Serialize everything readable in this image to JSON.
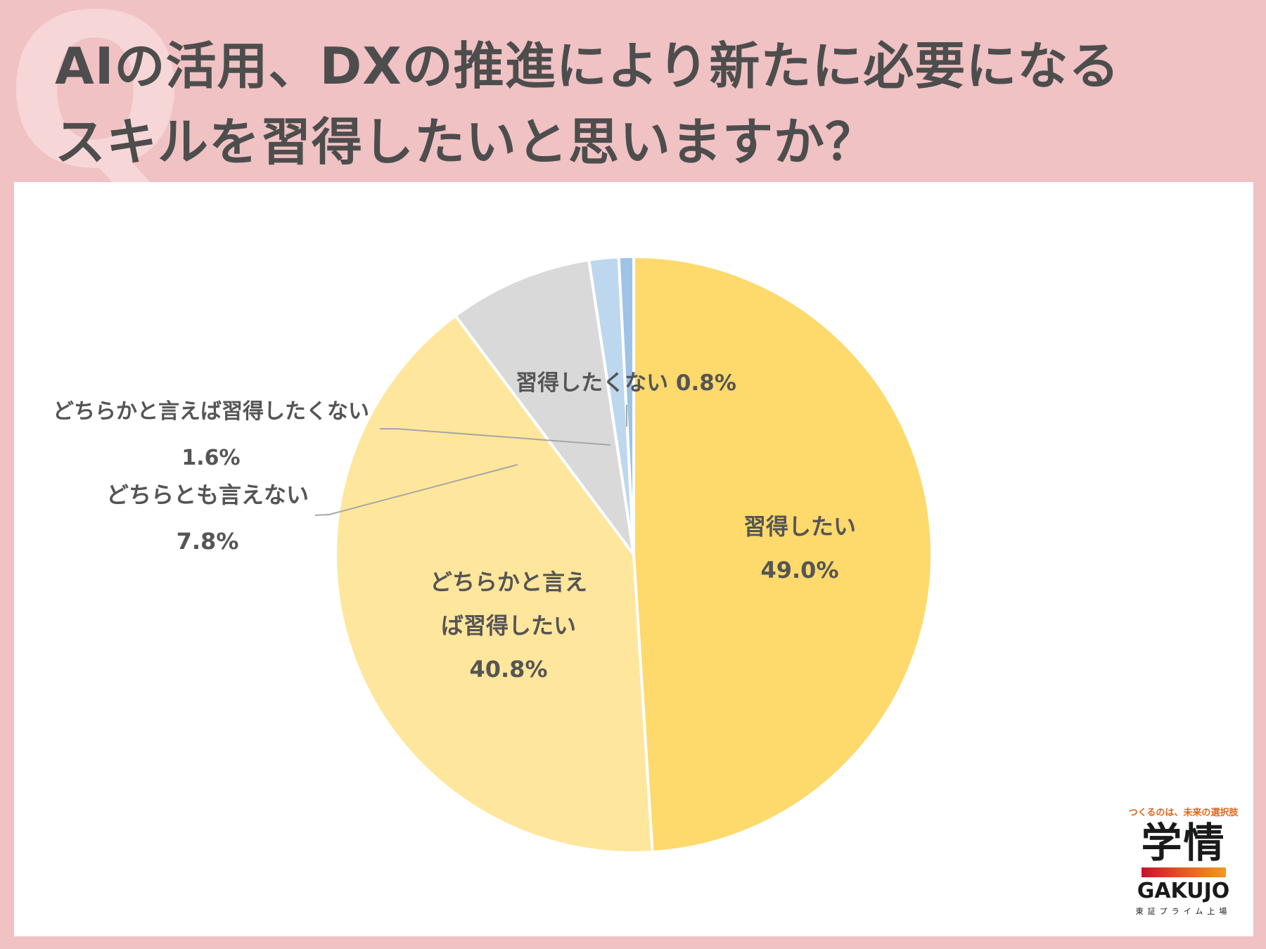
{
  "title_lines": [
    "AIの活用、DXの推進により新たに必要になる",
    "スキルを習得したいと思いますか？"
  ],
  "q_mark": "Q",
  "brand": {
    "tagline": "つくるのは、未来の選択肢",
    "name": "学情",
    "name_en": "GAKUJO",
    "subtitle": "東証プライム上場"
  },
  "chart_data": {
    "type": "pie",
    "start_angle_deg": 0,
    "direction": "clockwise",
    "slices": [
      {
        "label": "習得したい",
        "value": 49.0,
        "display": "49.0%",
        "color": "#fed96b",
        "label_placement": "inside"
      },
      {
        "label": "どちらかと言えば習得したい",
        "value": 40.8,
        "display": "40.8%",
        "color": "#fee69c",
        "label_placement": "inside"
      },
      {
        "label": "どちらとも言えない",
        "value": 7.8,
        "display": "7.8%",
        "color": "#d9d9d9",
        "label_placement": "outside-left"
      },
      {
        "label": "どちらかと言えば習得したくない",
        "value": 1.6,
        "display": "1.6%",
        "color": "#bdd7ee",
        "label_placement": "outside-left"
      },
      {
        "label": "習得したくない",
        "value": 0.8,
        "display": "0.8%",
        "color": "#9dc3e6",
        "label_placement": "outside-top"
      }
    ]
  }
}
